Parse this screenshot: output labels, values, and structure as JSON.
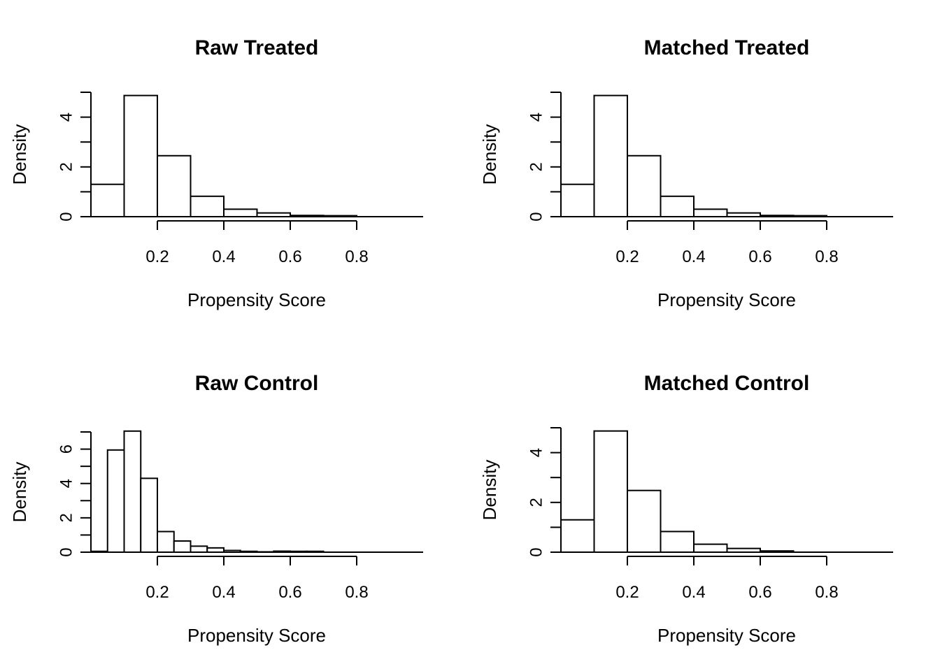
{
  "chart_data": [
    {
      "type": "bar",
      "title": "Raw Treated",
      "xlabel": "Propensity Score",
      "ylabel": "Density",
      "bin_edges": [
        0.0,
        0.1,
        0.2,
        0.3,
        0.4,
        0.5,
        0.6,
        0.7,
        0.8,
        0.9,
        1.0
      ],
      "values": [
        1.3,
        4.87,
        2.45,
        0.82,
        0.3,
        0.15,
        0.05,
        0.04,
        0.0,
        0.0
      ],
      "x_ticks": [
        "0.2",
        "0.4",
        "0.6",
        "0.8"
      ],
      "x_tick_values": [
        0.2,
        0.4,
        0.6,
        0.8
      ],
      "y_ticks": [
        "0",
        "2",
        "4"
      ],
      "y_tick_values": [
        0,
        2,
        4
      ],
      "y_minor_ticks": [
        0,
        1,
        2,
        3,
        4,
        5
      ],
      "xlim": [
        0.0,
        1.0
      ],
      "ylim": [
        0,
        5
      ]
    },
    {
      "type": "bar",
      "title": "Matched Treated",
      "xlabel": "Propensity Score",
      "ylabel": "Density",
      "bin_edges": [
        0.0,
        0.1,
        0.2,
        0.3,
        0.4,
        0.5,
        0.6,
        0.7,
        0.8,
        0.9,
        1.0
      ],
      "values": [
        1.3,
        4.87,
        2.45,
        0.82,
        0.3,
        0.15,
        0.05,
        0.04,
        0.0,
        0.0
      ],
      "x_ticks": [
        "0.2",
        "0.4",
        "0.6",
        "0.8"
      ],
      "x_tick_values": [
        0.2,
        0.4,
        0.6,
        0.8
      ],
      "y_ticks": [
        "0",
        "2",
        "4"
      ],
      "y_tick_values": [
        0,
        2,
        4
      ],
      "y_minor_ticks": [
        0,
        1,
        2,
        3,
        4,
        5
      ],
      "xlim": [
        0.0,
        1.0
      ],
      "ylim": [
        0,
        5
      ]
    },
    {
      "type": "bar",
      "title": "Raw Control",
      "xlabel": "Propensity Score",
      "ylabel": "Density",
      "bin_edges": [
        0.0,
        0.05,
        0.1,
        0.15,
        0.2,
        0.25,
        0.3,
        0.35,
        0.4,
        0.45,
        0.5,
        0.55,
        0.6,
        0.65,
        0.7,
        0.75,
        0.8,
        0.85,
        0.9,
        0.95,
        1.0
      ],
      "values": [
        0.05,
        5.95,
        7.05,
        4.3,
        1.2,
        0.65,
        0.35,
        0.25,
        0.1,
        0.05,
        0.02,
        0.06,
        0.05,
        0.05,
        0.0,
        0.0,
        0.0,
        0.0,
        0.0,
        0.0
      ],
      "x_ticks": [
        "0.2",
        "0.4",
        "0.6",
        "0.8"
      ],
      "x_tick_values": [
        0.2,
        0.4,
        0.6,
        0.8
      ],
      "y_ticks": [
        "0",
        "2",
        "4",
        "6"
      ],
      "y_tick_values": [
        0,
        2,
        4,
        6
      ],
      "y_minor_ticks": [
        0,
        1,
        2,
        3,
        4,
        5,
        6,
        7
      ],
      "xlim": [
        0.0,
        1.0
      ],
      "ylim": [
        0,
        7
      ]
    },
    {
      "type": "bar",
      "title": "Matched Control",
      "xlabel": "Propensity Score",
      "ylabel": "Density",
      "bin_edges": [
        0.0,
        0.1,
        0.2,
        0.3,
        0.4,
        0.5,
        0.6,
        0.7,
        0.8,
        0.9,
        1.0
      ],
      "values": [
        1.3,
        4.87,
        2.48,
        0.83,
        0.32,
        0.15,
        0.05,
        0.0,
        0.0,
        0.0
      ],
      "x_ticks": [
        "0.2",
        "0.4",
        "0.6",
        "0.8"
      ],
      "x_tick_values": [
        0.2,
        0.4,
        0.6,
        0.8
      ],
      "y_ticks": [
        "0",
        "2",
        "4"
      ],
      "y_tick_values": [
        0,
        2,
        4
      ],
      "y_minor_ticks": [
        0,
        1,
        2,
        3,
        4,
        5
      ],
      "xlim": [
        0.0,
        1.0
      ],
      "ylim": [
        0,
        5
      ]
    }
  ]
}
